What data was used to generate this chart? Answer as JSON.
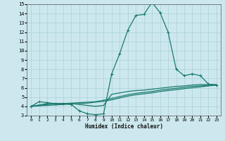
{
  "xlabel": "Humidex (Indice chaleur)",
  "background_color": "#cce8ee",
  "grid_color": "#aad0d8",
  "line_color": "#1a7a6e",
  "xlim": [
    -0.5,
    23.5
  ],
  "ylim": [
    3,
    15
  ],
  "xticks": [
    0,
    1,
    2,
    3,
    4,
    5,
    6,
    7,
    8,
    9,
    10,
    11,
    12,
    13,
    14,
    15,
    16,
    17,
    18,
    19,
    20,
    21,
    22,
    23
  ],
  "yticks": [
    3,
    4,
    5,
    6,
    7,
    8,
    9,
    10,
    11,
    12,
    13,
    14,
    15
  ],
  "lines": [
    {
      "x": [
        0,
        1,
        2,
        3,
        4,
        5,
        6,
        7,
        8,
        9,
        10,
        11,
        12,
        13,
        14,
        15,
        16,
        17,
        18,
        19,
        20,
        21,
        22,
        23
      ],
      "y": [
        4,
        4.5,
        4.4,
        4.3,
        4.3,
        4.2,
        3.5,
        3.2,
        3.1,
        3.2,
        7.5,
        9.7,
        12.2,
        13.8,
        13.9,
        15.2,
        14.1,
        12.0,
        8.0,
        7.3,
        7.5,
        7.3,
        6.4,
        6.3
      ],
      "marker": "+",
      "linewidth": 0.9,
      "markersize": 3.5
    },
    {
      "x": [
        0,
        1,
        2,
        3,
        4,
        5,
        6,
        7,
        8,
        9,
        10,
        11,
        12,
        13,
        14,
        15,
        16,
        17,
        18,
        19,
        20,
        21,
        22,
        23
      ],
      "y": [
        4.0,
        4.1,
        4.2,
        4.25,
        4.3,
        4.35,
        4.4,
        4.45,
        4.5,
        4.65,
        4.85,
        5.05,
        5.25,
        5.4,
        5.5,
        5.6,
        5.75,
        5.85,
        5.95,
        6.05,
        6.15,
        6.2,
        6.25,
        6.3
      ],
      "marker": null,
      "linewidth": 0.9,
      "markersize": 0
    },
    {
      "x": [
        0,
        1,
        2,
        3,
        4,
        5,
        6,
        7,
        8,
        9,
        10,
        11,
        12,
        13,
        14,
        15,
        16,
        17,
        18,
        19,
        20,
        21,
        22,
        23
      ],
      "y": [
        4.0,
        4.15,
        4.3,
        4.3,
        4.3,
        4.3,
        4.2,
        4.1,
        4.0,
        4.1,
        5.3,
        5.45,
        5.6,
        5.7,
        5.75,
        5.85,
        5.95,
        6.05,
        6.15,
        6.2,
        6.3,
        6.35,
        6.35,
        6.35
      ],
      "marker": null,
      "linewidth": 0.9,
      "markersize": 0
    },
    {
      "x": [
        0,
        1,
        2,
        3,
        4,
        5,
        6,
        7,
        8,
        9,
        10,
        11,
        12,
        13,
        14,
        15,
        16,
        17,
        18,
        19,
        20,
        21,
        22,
        23
      ],
      "y": [
        4.0,
        4.05,
        4.1,
        4.15,
        4.2,
        4.25,
        4.3,
        4.35,
        4.45,
        4.55,
        4.7,
        4.9,
        5.1,
        5.25,
        5.35,
        5.45,
        5.6,
        5.7,
        5.8,
        5.9,
        6.0,
        6.1,
        6.2,
        6.3
      ],
      "marker": null,
      "linewidth": 0.9,
      "markersize": 0
    }
  ]
}
